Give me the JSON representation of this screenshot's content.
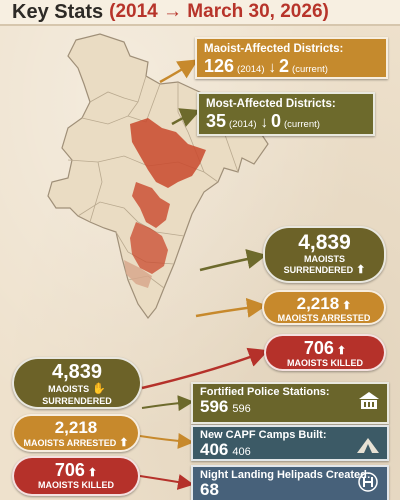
{
  "header": {
    "title": "Key Stats",
    "range": "(2014 → March 30, 2026)"
  },
  "map": {
    "highlight_color": "#c9492d",
    "region_color": "#e9dcc4"
  },
  "cards": {
    "affected": {
      "title": "Maoist-Affected Districts:",
      "value_2014": "126",
      "note_2014": "(2014)",
      "value_current": "2",
      "note_current": "(current)",
      "icon": "down-arrow-icon"
    },
    "most_affected": {
      "title": "Most-Affected Districts:",
      "value_2014": "35",
      "note_2014": "(2014)",
      "value_current": "0",
      "note_current": "(current)",
      "icon": "down-arrow-icon"
    }
  },
  "stats_right": {
    "surrendered": {
      "value": "4,839",
      "label1": "MAOISTS",
      "label2": "SURRENDERED",
      "color": "#6c6228"
    },
    "arrested": {
      "value": "2,218",
      "label": "MAOISTS ARRESTED",
      "color": "#c7892c"
    },
    "killed": {
      "value": "706",
      "label": "MAOISTS KILLED",
      "color": "#b5312a"
    }
  },
  "stats_left": {
    "surrendered": {
      "value": "4,839",
      "label1": "MAOISTS",
      "label2": "SURRENDERED"
    },
    "arrested": {
      "value": "2,218",
      "label": "MAOISTS ARRESTED"
    },
    "killed": {
      "value": "706",
      "label": "MAOISTS KILLED"
    }
  },
  "bars": {
    "police": {
      "title": "Fortified Police Stations:",
      "value": "596",
      "value_small": "596",
      "icon": "police-station-icon"
    },
    "capf": {
      "title": "New CAPF Camps Built:",
      "value": "406",
      "value_small": "406",
      "icon": "tent-camp-icon"
    },
    "heli": {
      "title": "Night Landing Helipads Created:",
      "value": "68",
      "icon": "helipad-icon"
    }
  }
}
